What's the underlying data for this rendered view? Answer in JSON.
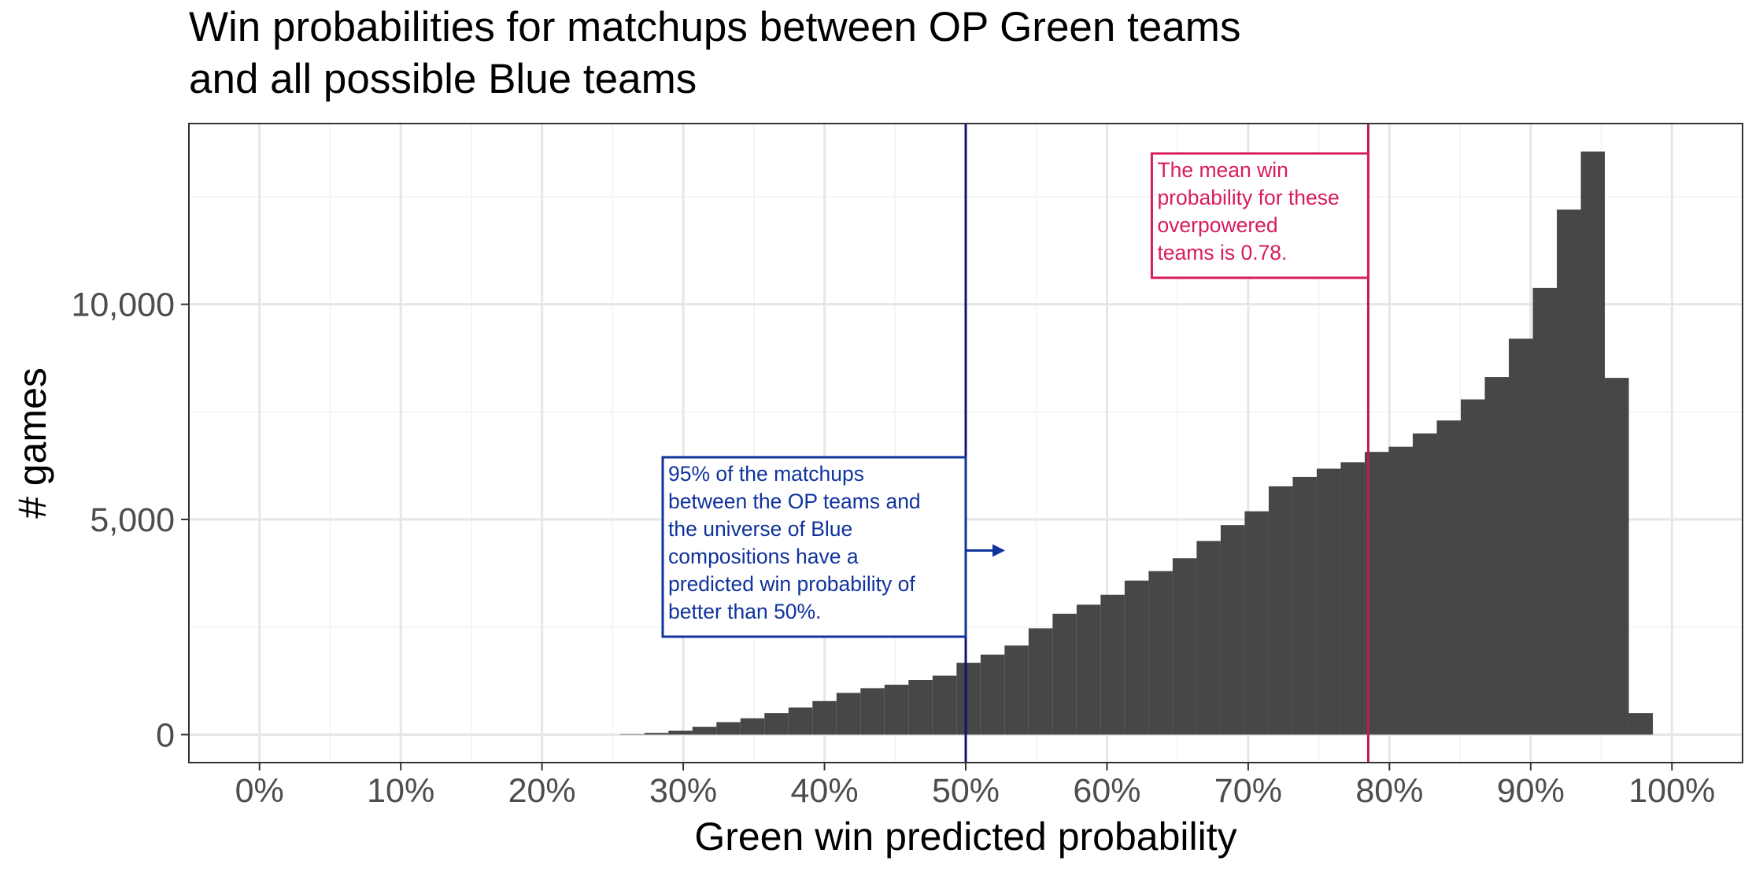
{
  "chart_data": {
    "type": "bar",
    "title_lines": [
      "Win probabilities for matchups between OP Green teams",
      "and all possible Blue teams"
    ],
    "xlabel": "Green win predicted probability",
    "ylabel": "# games",
    "x_ticks": [
      0,
      0.1,
      0.2,
      0.3,
      0.4,
      0.5,
      0.6,
      0.7,
      0.8,
      0.9,
      1.0
    ],
    "x_tick_labels": [
      "0%",
      "10%",
      "20%",
      "30%",
      "40%",
      "50%",
      "60%",
      "70%",
      "80%",
      "90%",
      "100%"
    ],
    "y_ticks": [
      0,
      5000,
      10000
    ],
    "y_tick_labels": [
      "0",
      "5,000",
      "10,000"
    ],
    "xlim": [
      -0.05,
      1.05
    ],
    "ylim": [
      -650,
      14200
    ],
    "grid": true,
    "bin_width": 0.017,
    "bins": [
      {
        "x": 0.264,
        "count": 10
      },
      {
        "x": 0.281,
        "count": 40
      },
      {
        "x": 0.298,
        "count": 90
      },
      {
        "x": 0.315,
        "count": 180
      },
      {
        "x": 0.332,
        "count": 290
      },
      {
        "x": 0.349,
        "count": 380
      },
      {
        "x": 0.366,
        "count": 500
      },
      {
        "x": 0.383,
        "count": 630
      },
      {
        "x": 0.4,
        "count": 780
      },
      {
        "x": 0.417,
        "count": 970
      },
      {
        "x": 0.434,
        "count": 1080
      },
      {
        "x": 0.451,
        "count": 1160
      },
      {
        "x": 0.468,
        "count": 1270
      },
      {
        "x": 0.485,
        "count": 1370
      },
      {
        "x": 0.502,
        "count": 1670
      },
      {
        "x": 0.519,
        "count": 1860
      },
      {
        "x": 0.536,
        "count": 2070
      },
      {
        "x": 0.553,
        "count": 2470
      },
      {
        "x": 0.57,
        "count": 2810
      },
      {
        "x": 0.587,
        "count": 3020
      },
      {
        "x": 0.604,
        "count": 3250
      },
      {
        "x": 0.621,
        "count": 3580
      },
      {
        "x": 0.638,
        "count": 3800
      },
      {
        "x": 0.655,
        "count": 4100
      },
      {
        "x": 0.672,
        "count": 4500
      },
      {
        "x": 0.689,
        "count": 4870
      },
      {
        "x": 0.706,
        "count": 5190
      },
      {
        "x": 0.723,
        "count": 5770
      },
      {
        "x": 0.74,
        "count": 5990
      },
      {
        "x": 0.757,
        "count": 6180
      },
      {
        "x": 0.774,
        "count": 6330
      },
      {
        "x": 0.791,
        "count": 6570
      },
      {
        "x": 0.808,
        "count": 6690
      },
      {
        "x": 0.825,
        "count": 7000
      },
      {
        "x": 0.842,
        "count": 7300
      },
      {
        "x": 0.859,
        "count": 7790
      },
      {
        "x": 0.876,
        "count": 8310
      },
      {
        "x": 0.893,
        "count": 9200
      },
      {
        "x": 0.91,
        "count": 10380
      },
      {
        "x": 0.927,
        "count": 12200
      },
      {
        "x": 0.944,
        "count": 13550
      },
      {
        "x": 0.961,
        "count": 8290
      },
      {
        "x": 0.978,
        "count": 500
      }
    ],
    "bar_color": "#474747",
    "reference_lines": [
      {
        "name": "threshold",
        "x": 0.5,
        "color": "#11117a"
      },
      {
        "name": "mean",
        "x": 0.785,
        "color": "#c2185b"
      }
    ],
    "annotations": [
      {
        "name": "threshold-note",
        "lines": [
          "95% of the matchups",
          "between the OP teams and",
          "the universe of Blue",
          "compositions have a",
          "predicted win probability of",
          "better than 50%."
        ],
        "color": "#10339c",
        "anchor_x": 0.5,
        "side": "left",
        "arrow": "right"
      },
      {
        "name": "mean-note",
        "lines": [
          "The mean win",
          "probability for these",
          "overpowered",
          "teams is 0.78."
        ],
        "color": "#d81b60",
        "anchor_x": 0.785,
        "side": "left"
      }
    ]
  }
}
